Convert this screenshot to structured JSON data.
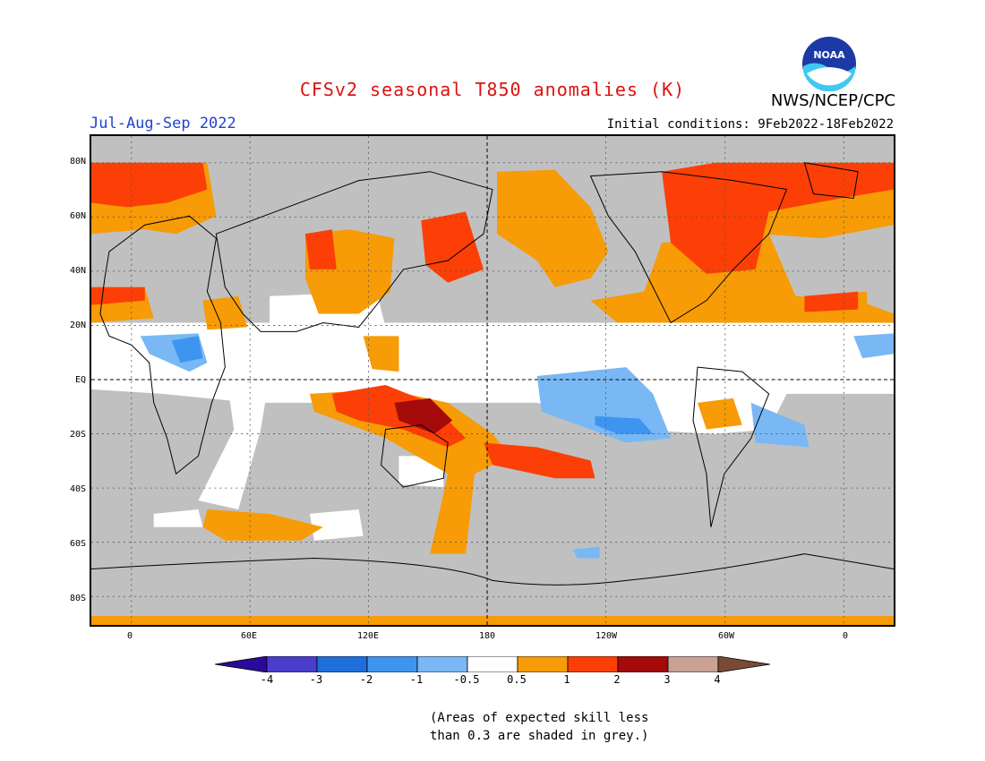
{
  "title": "CFSv2 seasonal T850 anomalies (K)",
  "season": "Jul-Aug-Sep 2022",
  "initial_conditions": "Initial conditions: 9Feb2022-18Feb2022",
  "organization": "NWS/NCEP/CPC",
  "logo_text": "NOAA",
  "colors": {
    "title": "#dd1111",
    "season": "#2244cc",
    "land_mask_grey": "#c0c0c0",
    "neutral_white": "#ffffff"
  },
  "map": {
    "projection": "cylindrical equidistant",
    "lat_labels": [
      "80N",
      "60N",
      "40N",
      "20N",
      "EQ",
      "20S",
      "40S",
      "60S",
      "80S"
    ],
    "lon_labels": [
      "0",
      "60E",
      "120E",
      "180",
      "120W",
      "60W",
      "0"
    ],
    "grid": "dotted"
  },
  "colorbar": {
    "bins": [
      {
        "color": "#2a0a9a"
      },
      {
        "color": "#4a3ccc"
      },
      {
        "color": "#1e6fdc"
      },
      {
        "color": "#3d95f0"
      },
      {
        "color": "#79b8f4"
      },
      {
        "color": "#ffffff"
      },
      {
        "color": "#f79b06"
      },
      {
        "color": "#fb3f07"
      },
      {
        "color": "#a50a0a"
      },
      {
        "color": "#c9a195"
      },
      {
        "color": "#7a4a38"
      }
    ],
    "tick_labels": [
      "-4",
      "-3",
      "-2",
      "-1",
      "-0.5",
      "0.5",
      "1",
      "2",
      "3",
      "4"
    ]
  },
  "footnote": {
    "line1": "(Areas of expected skill less",
    "line2": "than 0.3 are shaded in grey.)"
  }
}
